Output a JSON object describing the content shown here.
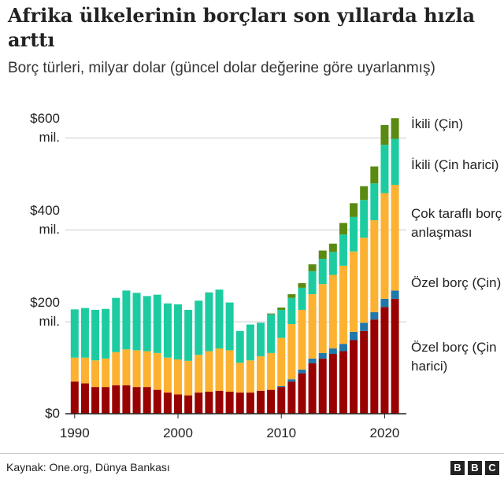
{
  "chart_data": {
    "type": "stacked-bar",
    "title": "Afrika ülkelerinin borçları son yıllarda hızla arttı",
    "subtitle": "Borç türleri, milyar dolar (güncel dolar değerine göre uyarlanmış)",
    "source": "Kaynak: One.org, Dünya Bankası",
    "x": [
      1990,
      1991,
      1992,
      1993,
      1994,
      1995,
      1996,
      1997,
      1998,
      1999,
      2000,
      2001,
      2002,
      2003,
      2004,
      2005,
      2006,
      2007,
      2008,
      2009,
      2010,
      2011,
      2012,
      2013,
      2014,
      2015,
      2016,
      2017,
      2018,
      2019,
      2020,
      2021
    ],
    "xlim": [
      1989.1,
      2022.1
    ],
    "xticks": [
      1990,
      2000,
      2010,
      2020
    ],
    "ylim": [
      0,
      640
    ],
    "yticks": [
      {
        "value": 0,
        "label": "$0"
      },
      {
        "value": 200,
        "label": "$200 mil."
      },
      {
        "value": 400,
        "label": "$400 mil."
      },
      {
        "value": 600,
        "label": "$600 mil."
      }
    ],
    "grid": true,
    "series": [
      {
        "name": "Özel borç (Çin harici)",
        "color": "#990000",
        "values": [
          70,
          66,
          58,
          58,
          62,
          62,
          58,
          58,
          52,
          46,
          42,
          40,
          46,
          48,
          50,
          48,
          46,
          46,
          50,
          52,
          58,
          70,
          88,
          110,
          120,
          130,
          136,
          160,
          180,
          205,
          232,
          250
        ]
      },
      {
        "name": "Özel borç (Çin)",
        "color": "#1f78a8",
        "values": [
          0,
          0,
          0,
          0,
          0,
          0,
          0,
          0,
          0,
          0,
          0,
          0,
          0,
          0,
          0,
          0,
          0,
          0,
          0,
          0,
          2,
          5,
          8,
          10,
          12,
          12,
          16,
          18,
          18,
          16,
          18,
          18
        ]
      },
      {
        "name": "Çok taraflı borç anlaşması",
        "color": "#fcb130",
        "values": [
          52,
          56,
          58,
          62,
          72,
          78,
          80,
          78,
          80,
          76,
          76,
          75,
          82,
          88,
          92,
          90,
          65,
          70,
          75,
          80,
          105,
          120,
          130,
          140,
          150,
          160,
          170,
          175,
          185,
          200,
          230,
          230
        ]
      },
      {
        "name": "İkili (Çin harici)",
        "color": "#1ccca0",
        "values": [
          105,
          108,
          110,
          108,
          118,
          128,
          125,
          120,
          127,
          118,
          120,
          111,
          118,
          128,
          128,
          104,
          69,
          78,
          73,
          84,
          61,
          57,
          48,
          50,
          55,
          50,
          68,
          75,
          82,
          80,
          105,
          100
        ]
      },
      {
        "name": "İkili (Çin)",
        "color": "#5a8a12",
        "values": [
          0,
          0,
          0,
          0,
          0,
          0,
          0,
          0,
          0,
          0,
          0,
          0,
          0,
          0,
          0,
          0,
          0,
          0,
          0,
          2,
          5,
          8,
          10,
          15,
          18,
          18,
          25,
          30,
          30,
          37,
          43,
          45
        ]
      }
    ]
  }
}
